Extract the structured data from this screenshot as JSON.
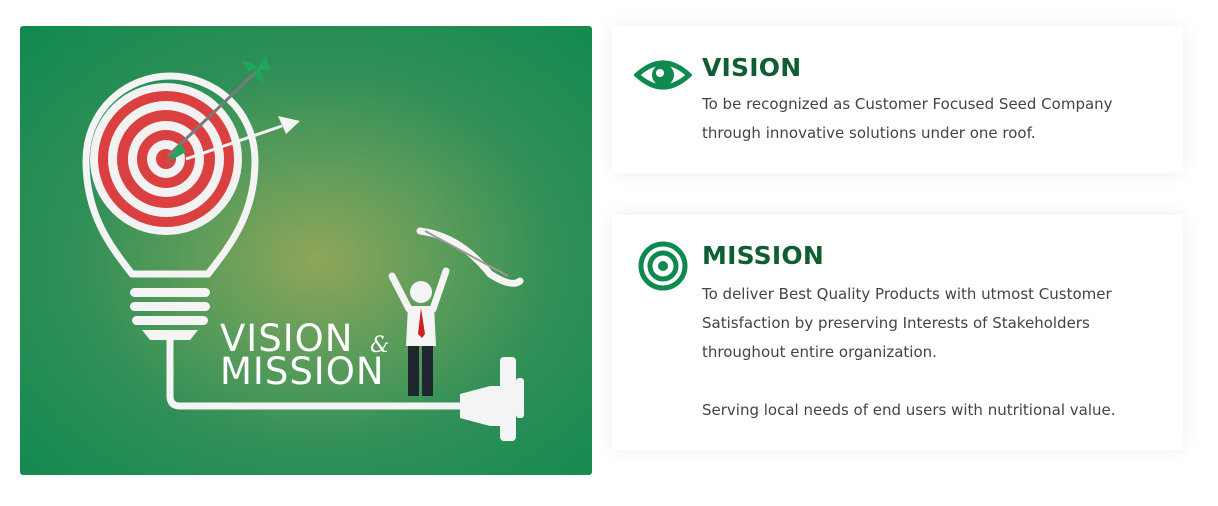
{
  "hero": {
    "word_vision": "VISION",
    "ampersand": "&",
    "word_mission": "MISSION",
    "background_colors": [
      "#8fa65a",
      "#108a4f"
    ]
  },
  "vision": {
    "icon": "eye-icon",
    "title": "VISION",
    "text": "To be recognized as Customer Focused Seed Company through innovative solutions under one roof."
  },
  "mission": {
    "icon": "target-icon",
    "title": "MISSION",
    "text_1": "To deliver Best Quality Products with utmost Customer Satisfaction by preserving Interests of Stakeholders throughout entire organization.",
    "text_2": "Serving local needs of end users with nutritional value."
  },
  "colors": {
    "accent_green": "#0e8a4f",
    "heading_green": "#0f5e33",
    "body_text": "#444444"
  }
}
